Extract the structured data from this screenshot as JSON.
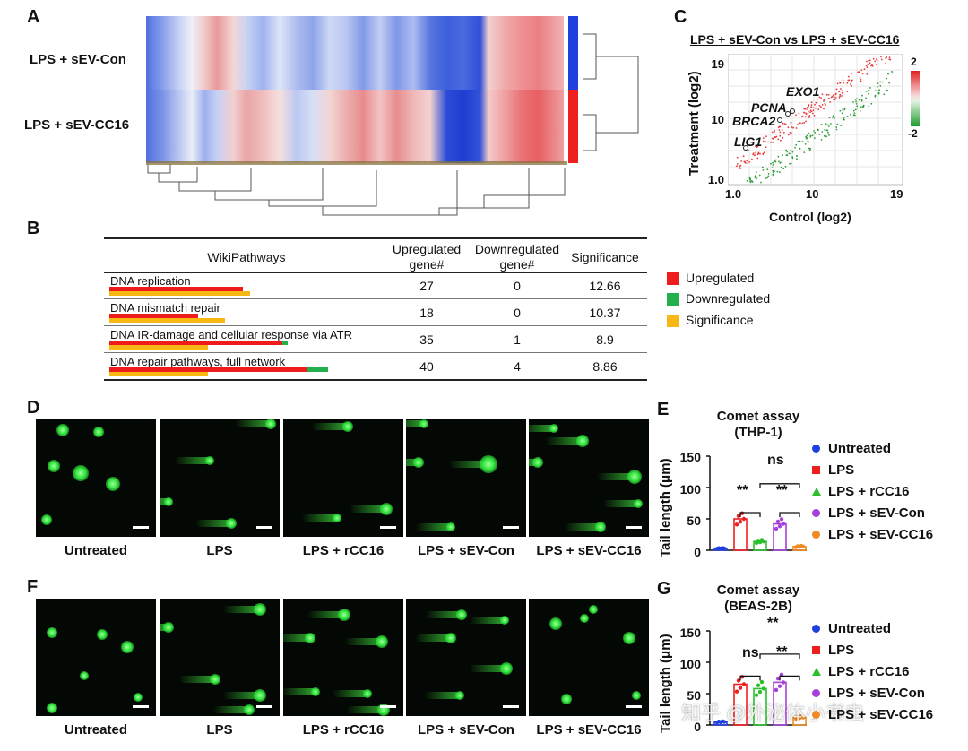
{
  "panels": {
    "a": "A",
    "b": "B",
    "c": "C",
    "d": "D",
    "e": "E",
    "f": "F",
    "g": "G"
  },
  "heatmap": {
    "rows": [
      "LPS + sEV-Con",
      "LPS + sEV-CC16"
    ],
    "row_colors": [
      "#1f3fe0",
      "#ee1f1f"
    ]
  },
  "pathways": {
    "headers": [
      "WikiPathways",
      "Upregulated gene#",
      "Downregulated gene#",
      "Significance"
    ],
    "header_lines": [
      [
        "WikiPathways"
      ],
      [
        "Upregulated",
        "gene#"
      ],
      [
        "Downregulated",
        "gene#"
      ],
      [
        "Significance"
      ]
    ],
    "rows": [
      {
        "name": "DNA replication",
        "up": "27",
        "down": "0",
        "sig": "12.66"
      },
      {
        "name": "DNA mismatch repair",
        "up": "18",
        "down": "0",
        "sig": "10.37"
      },
      {
        "name": "DNA IR-damage and cellular response via ATR",
        "up": "35",
        "down": "1",
        "sig": "8.9"
      },
      {
        "name": "DNA repair pathways, full network",
        "up": "40",
        "down": "4",
        "sig": "8.86"
      }
    ],
    "legend": [
      "Upregulated",
      "Downregulated",
      "Significance"
    ],
    "colors": {
      "up": "#ee1c1c",
      "down": "#22b04c",
      "sig": "#f7b813"
    }
  },
  "scatter": {
    "title": "LPS + sEV-Con vs LPS + sEV-CC16",
    "xlabel": "Control (log2)",
    "ylabel": "Treatment (log2)",
    "xticks": [
      "1.0",
      "10",
      "19"
    ],
    "yticks": [
      "19",
      "10",
      "1.0"
    ],
    "colorbar": [
      "2",
      "-2"
    ],
    "genes": [
      "EXO1",
      "PCNA",
      "BRCA2",
      "LIG1"
    ]
  },
  "conditions": [
    "Untreated",
    "LPS",
    "LPS + rCC16",
    "LPS + sEV-Con",
    "LPS + sEV-CC16"
  ],
  "comet": {
    "ylabel": "Tail length (μm)",
    "yticks": [
      "150",
      "100",
      "50",
      "0"
    ],
    "legend": [
      "Untreated",
      "LPS",
      "LPS + rCC16",
      "LPS + sEV-Con",
      "LPS + sEV-CC16"
    ],
    "marker_colors": [
      "#1f3fe0",
      "#ee1f1f",
      "#2bbf2b",
      "#a640d8",
      "#f08a24"
    ],
    "thp1": {
      "title": "Comet assay",
      "subtitle": "(THP-1)",
      "sig": [
        "**",
        "ns",
        "**"
      ]
    },
    "beas": {
      "title": "Comet assay",
      "subtitle": "(BEAS-2B)",
      "sig": [
        "ns",
        "**",
        "**"
      ]
    }
  },
  "chart_data": [
    {
      "type": "bar",
      "title": "Comet assay (THP-1)",
      "ylabel": "Tail length (μm)",
      "categories": [
        "Untreated",
        "LPS",
        "LPS + rCC16",
        "LPS + sEV-Con",
        "LPS + sEV-CC16"
      ],
      "values": [
        3,
        50,
        14,
        42,
        6
      ],
      "ylim": [
        0,
        150
      ],
      "yticks": [
        0,
        50,
        100,
        150
      ]
    },
    {
      "type": "bar",
      "title": "Comet assay (BEAS-2B)",
      "ylabel": "Tail length (μm)",
      "categories": [
        "Untreated",
        "LPS",
        "LPS + rCC16",
        "LPS + sEV-Con",
        "LPS + sEV-CC16"
      ],
      "values": [
        5,
        65,
        58,
        68,
        12
      ],
      "ylim": [
        0,
        150
      ],
      "yticks": [
        0,
        50,
        100,
        150
      ]
    }
  ],
  "watermark": "知乎 @外泌体小书虫"
}
